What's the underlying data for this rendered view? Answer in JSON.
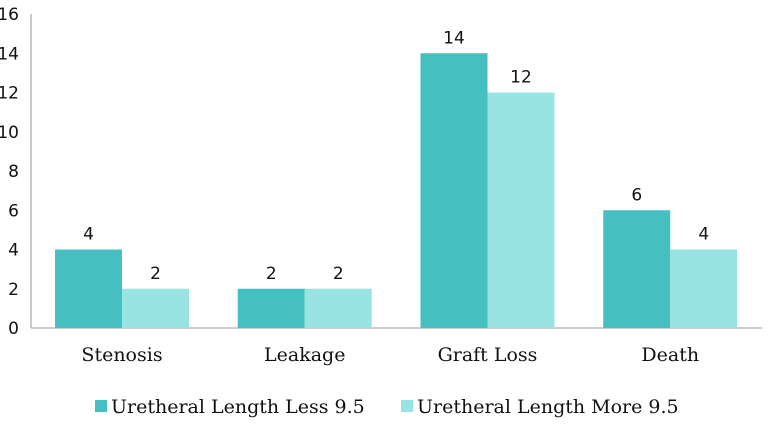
{
  "chart_data": {
    "type": "bar",
    "title": "",
    "xlabel": "",
    "ylabel": "",
    "categories": [
      "Stenosis",
      "Leakage",
      "Graft Loss",
      "Death"
    ],
    "series": [
      {
        "name": "Uretheral Length Less 9.5",
        "values": [
          4,
          2,
          14,
          6
        ],
        "color": "#45bfbf"
      },
      {
        "name": "Uretheral Length More 9.5",
        "values": [
          2,
          2,
          12,
          4
        ],
        "color": "#98e4e2"
      }
    ],
    "ylim": [
      0,
      16
    ],
    "yticks": [
      0,
      2,
      4,
      6,
      8,
      10,
      12,
      14,
      16
    ],
    "grid": false,
    "legend": "bottom",
    "data_labels": true
  }
}
